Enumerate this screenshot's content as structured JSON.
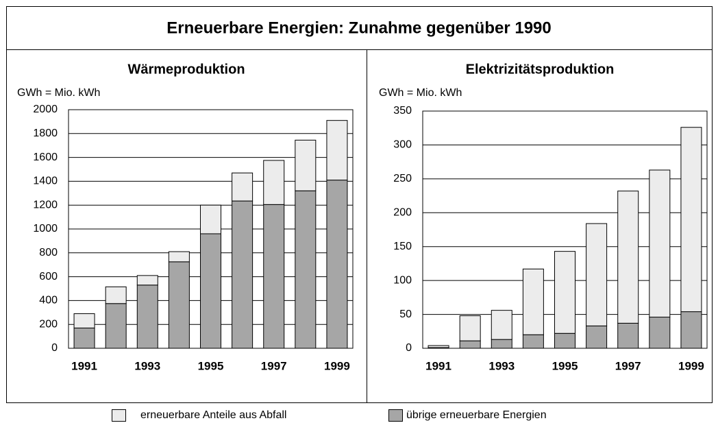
{
  "title": "Erneuerbare Energien:  Zunahme gegenüber 1990",
  "chart_data": [
    {
      "type": "bar",
      "stacked": true,
      "title": "Wärmeproduktion",
      "ylabel": "GWh = Mio. kWh",
      "categories": [
        "1991",
        null,
        "1993",
        null,
        "1995",
        null,
        "1997",
        null,
        "1999"
      ],
      "series": [
        {
          "name": "übrige erneuerbare Energien",
          "color": "#a6a6a6",
          "values": [
            170,
            375,
            530,
            725,
            960,
            1235,
            1205,
            1320,
            1410
          ]
        },
        {
          "name": "erneuerbare Anteile aus Abfall",
          "color": "#ececec",
          "values": [
            120,
            140,
            80,
            85,
            240,
            235,
            370,
            425,
            500
          ]
        }
      ],
      "ylim": [
        0,
        2000
      ],
      "yticks": [
        0,
        200,
        400,
        600,
        800,
        1000,
        1200,
        1400,
        1600,
        1800,
        2000
      ],
      "grid": true
    },
    {
      "type": "bar",
      "stacked": true,
      "title": "Elektrizitätsproduktion",
      "ylabel": "GWh = Mio. kWh",
      "categories": [
        "1991",
        null,
        "1993",
        null,
        "1995",
        null,
        "1997",
        null,
        "1999"
      ],
      "series": [
        {
          "color": "#a6a6a6",
          "values": [
            1,
            11,
            13,
            20,
            22,
            33,
            37,
            46,
            54
          ]
        },
        {
          "color": "#ececec",
          "values": [
            3,
            37,
            43,
            97,
            121,
            151,
            195,
            217,
            272
          ]
        }
      ],
      "ylim": [
        0,
        350
      ],
      "yticks": [
        0,
        50,
        100,
        150,
        200,
        250,
        300,
        350
      ],
      "grid": true
    }
  ]
}
